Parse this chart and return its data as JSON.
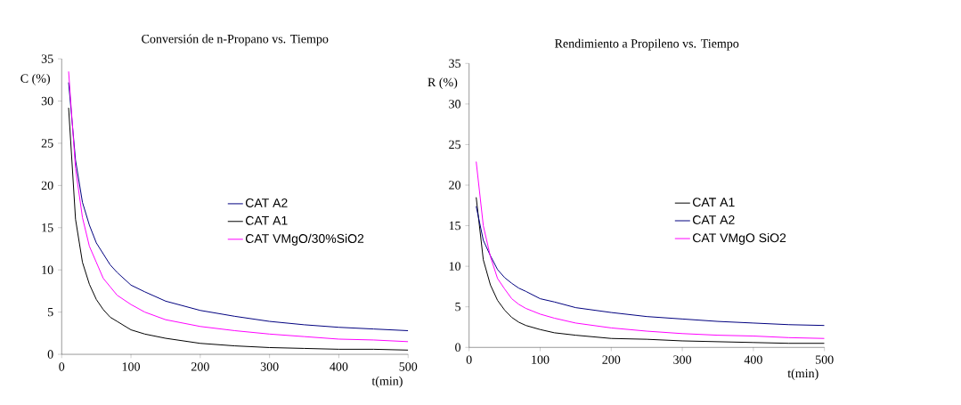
{
  "chart_data": [
    {
      "type": "line",
      "title": "Conversión de n-Propano vs. Tiempo",
      "xlabel": "t(min)",
      "ylabel": "C (%)",
      "x": [
        10,
        20,
        30,
        40,
        50,
        60,
        70,
        80,
        100,
        120,
        150,
        200,
        250,
        300,
        350,
        400,
        450,
        500
      ],
      "xlim": [
        0,
        500
      ],
      "ylim": [
        0,
        35
      ],
      "xticks": [
        0,
        100,
        200,
        300,
        400,
        500
      ],
      "yticks": [
        0,
        5,
        10,
        15,
        20,
        25,
        30,
        35
      ],
      "legend": "right",
      "grid": false,
      "marker": "none",
      "line_style": "solid",
      "series": [
        {
          "name": "CAT A2",
          "color": "#000080",
          "values": [
            32.2,
            23,
            18,
            15.3,
            13.2,
            11.9,
            10.6,
            9.7,
            8.2,
            7.4,
            6.3,
            5.2,
            4.5,
            3.9,
            3.5,
            3.2,
            3.0,
            2.8
          ]
        },
        {
          "name": "CAT A1",
          "color": "#000000",
          "values": [
            29.2,
            16,
            10.9,
            8.3,
            6.5,
            5.3,
            4.4,
            3.9,
            2.9,
            2.4,
            1.9,
            1.3,
            1.0,
            0.8,
            0.7,
            0.6,
            0.6,
            0.5
          ]
        },
        {
          "name": "CAT VMgO/30%SiO2",
          "color": "#ff00ff",
          "values": [
            33.5,
            22,
            16.2,
            12.8,
            10.9,
            9.0,
            8.0,
            7.0,
            5.9,
            5.0,
            4.1,
            3.3,
            2.8,
            2.4,
            2.1,
            1.8,
            1.7,
            1.5
          ]
        }
      ]
    },
    {
      "type": "line",
      "title": "Rendimiento a Propileno vs. Tiempo",
      "xlabel": "t(min)",
      "ylabel": "R (%)",
      "x": [
        10,
        20,
        30,
        40,
        50,
        60,
        70,
        80,
        100,
        120,
        150,
        200,
        250,
        300,
        350,
        400,
        450,
        500
      ],
      "xlim": [
        0,
        500
      ],
      "ylim": [
        0,
        35
      ],
      "xticks": [
        0,
        100,
        200,
        300,
        400,
        500
      ],
      "yticks": [
        0,
        5,
        10,
        15,
        20,
        25,
        30,
        35
      ],
      "legend": "right",
      "grid": false,
      "marker": "none",
      "line_style": "solid",
      "series": [
        {
          "name": "CAT A1",
          "color": "#000000",
          "values": [
            18.5,
            10.8,
            7.7,
            5.8,
            4.6,
            3.7,
            3.1,
            2.7,
            2.2,
            1.8,
            1.5,
            1.1,
            1.0,
            0.8,
            0.7,
            0.6,
            0.5,
            0.5
          ]
        },
        {
          "name": "CAT A2",
          "color": "#000080",
          "values": [
            17.4,
            13.2,
            11.3,
            9.6,
            8.6,
            7.9,
            7.3,
            6.9,
            6.0,
            5.6,
            4.9,
            4.3,
            3.8,
            3.5,
            3.2,
            3.0,
            2.8,
            2.7
          ]
        },
        {
          "name": "CAT VMgO SiO2",
          "color": "#ff00ff",
          "values": [
            22.9,
            15.0,
            11.2,
            8.5,
            7.2,
            6.0,
            5.3,
            4.8,
            4.1,
            3.6,
            3.0,
            2.4,
            2.0,
            1.7,
            1.5,
            1.4,
            1.2,
            1.1
          ]
        }
      ]
    }
  ]
}
